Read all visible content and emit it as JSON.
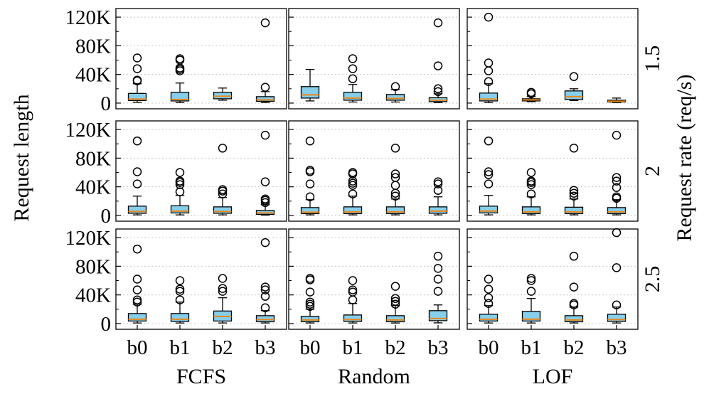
{
  "chart_data": {
    "type": "box",
    "ylabel": "Request length",
    "right_label": "Request rate (req/s)",
    "y_ticks": [
      0,
      40000,
      80000,
      120000
    ],
    "y_tick_labels": [
      "0",
      "40K",
      "80K",
      "120K"
    ],
    "ylim": [
      -8000,
      132000
    ],
    "grid": "horizontal dotted",
    "categories": [
      "b0",
      "b1",
      "b2",
      "b3"
    ],
    "columns": [
      "FCFS",
      "Random",
      "LOF"
    ],
    "rows": [
      "1.5",
      "2",
      "2.5"
    ],
    "colors": {
      "box_fill": "#87CEEB",
      "median": "#E8891C",
      "grid": "#C8C8C8",
      "edge": "#000000"
    },
    "panels": [
      {
        "row": "1.5",
        "column": "FCFS",
        "boxes": [
          {
            "category": "b0",
            "whislo": 1000,
            "q1": 3500,
            "med": 5500,
            "q3": 13500,
            "whishi": 27000,
            "fliers": [
              31000,
              32000,
              48000,
              63000
            ]
          },
          {
            "category": "b1",
            "whislo": 800,
            "q1": 3000,
            "med": 5000,
            "q3": 15000,
            "whishi": 28000,
            "fliers": [
              45000,
              47000,
              49000,
              60000,
              62000
            ]
          },
          {
            "category": "b2",
            "whislo": 4000,
            "q1": 6000,
            "med": 9500,
            "q3": 15000,
            "whishi": 21000,
            "fliers": []
          },
          {
            "category": "b3",
            "whislo": 800,
            "q1": 2500,
            "med": 4500,
            "q3": 9000,
            "whishi": 16000,
            "fliers": [
              22000,
              112000
            ]
          }
        ]
      },
      {
        "row": "1.5",
        "column": "Random",
        "boxes": [
          {
            "category": "b0",
            "whislo": 3000,
            "q1": 7000,
            "med": 11500,
            "q3": 23000,
            "whishi": 47000,
            "fliers": []
          },
          {
            "category": "b1",
            "whislo": 1500,
            "q1": 4000,
            "med": 7000,
            "q3": 15000,
            "whishi": 26000,
            "fliers": [
              34000,
              48000,
              62000
            ]
          },
          {
            "category": "b2",
            "whislo": 1500,
            "q1": 4000,
            "med": 6500,
            "q3": 12000,
            "whishi": 19000,
            "fliers": [
              23000
            ]
          },
          {
            "category": "b3",
            "whislo": 800,
            "q1": 2000,
            "med": 4000,
            "q3": 7500,
            "whishi": 13000,
            "fliers": [
              16000,
              20000,
              52000,
              112000
            ]
          }
        ]
      },
      {
        "row": "1.5",
        "column": "LOF",
        "boxes": [
          {
            "category": "b0",
            "whislo": 800,
            "q1": 3000,
            "med": 5500,
            "q3": 14000,
            "whishi": 27000,
            "fliers": [
              30000,
              45000,
              56000,
              120000
            ]
          },
          {
            "category": "b1",
            "whislo": 2000,
            "q1": 3000,
            "med": 4500,
            "q3": 6000,
            "whishi": 9000,
            "fliers": [
              13000,
              15000
            ]
          },
          {
            "category": "b2",
            "whislo": 3500,
            "q1": 5000,
            "med": 9000,
            "q3": 17000,
            "whishi": 20000,
            "fliers": [
              37000
            ]
          },
          {
            "category": "b3",
            "whislo": 800,
            "q1": 1500,
            "med": 2500,
            "q3": 4000,
            "whishi": 7000,
            "fliers": []
          }
        ]
      },
      {
        "row": "2",
        "column": "FCFS",
        "boxes": [
          {
            "category": "b0",
            "whislo": 800,
            "q1": 3000,
            "med": 5500,
            "q3": 13000,
            "whishi": 27000,
            "fliers": [
              44000,
              61000,
              104000
            ]
          },
          {
            "category": "b1",
            "whislo": 800,
            "q1": 3500,
            "med": 6000,
            "q3": 13500,
            "whishi": 28000,
            "fliers": [
              33000,
              43000,
              46000,
              48000,
              60000
            ]
          },
          {
            "category": "b2",
            "whislo": 800,
            "q1": 3000,
            "med": 5500,
            "q3": 12000,
            "whishi": 25000,
            "fliers": [
              30000,
              34000,
              36000,
              94000
            ]
          },
          {
            "category": "b3",
            "whislo": 500,
            "q1": 1500,
            "med": 3500,
            "q3": 7000,
            "whishi": 15000,
            "fliers": [
              18000,
              21000,
              23000,
              47000,
              112000
            ]
          }
        ]
      },
      {
        "row": "2",
        "column": "Random",
        "boxes": [
          {
            "category": "b0",
            "whislo": 800,
            "q1": 2500,
            "med": 4500,
            "q3": 11000,
            "whishi": 22000,
            "fliers": [
              26000,
              44000,
              61000,
              63000,
              104000
            ]
          },
          {
            "category": "b1",
            "whislo": 800,
            "q1": 2500,
            "med": 5000,
            "q3": 12000,
            "whishi": 27000,
            "fliers": [
              30000,
              42000,
              45000,
              48000,
              58000,
              60000
            ]
          },
          {
            "category": "b2",
            "whislo": 800,
            "q1": 2500,
            "med": 5000,
            "q3": 12000,
            "whishi": 23000,
            "fliers": [
              27000,
              31000,
              42000,
              53000,
              58000,
              94000
            ]
          },
          {
            "category": "b3",
            "whislo": 800,
            "q1": 3000,
            "med": 6000,
            "q3": 12000,
            "whishi": 26000,
            "fliers": [
              35000,
              44000,
              47000
            ]
          }
        ]
      },
      {
        "row": "2",
        "column": "LOF",
        "boxes": [
          {
            "category": "b0",
            "whislo": 800,
            "q1": 3500,
            "med": 6000,
            "q3": 13000,
            "whishi": 28000,
            "fliers": [
              44000,
              57000,
              61000,
              104000
            ]
          },
          {
            "category": "b1",
            "whislo": 800,
            "q1": 2500,
            "med": 5000,
            "q3": 12000,
            "whishi": 26000,
            "fliers": [
              30000,
              43000,
              46000,
              48000,
              60000
            ]
          },
          {
            "category": "b2",
            "whislo": 800,
            "q1": 2500,
            "med": 5000,
            "q3": 11500,
            "whishi": 23000,
            "fliers": [
              27000,
              31000,
              35000,
              94000
            ]
          },
          {
            "category": "b3",
            "whislo": 800,
            "q1": 2500,
            "med": 5000,
            "q3": 11000,
            "whishi": 22000,
            "fliers": [
              24000,
              26000,
              39000,
              48000,
              53000,
              112000
            ]
          }
        ]
      },
      {
        "row": "2.5",
        "column": "FCFS",
        "boxes": [
          {
            "category": "b0",
            "whislo": 800,
            "q1": 3500,
            "med": 6000,
            "q3": 14000,
            "whishi": 27000,
            "fliers": [
              30000,
              33000,
              47000,
              62000,
              104000
            ]
          },
          {
            "category": "b1",
            "whislo": 800,
            "q1": 3000,
            "med": 6000,
            "q3": 14000,
            "whishi": 30000,
            "fliers": [
              33000,
              45000,
              48000,
              60000
            ]
          },
          {
            "category": "b2",
            "whislo": 800,
            "q1": 3500,
            "med": 10000,
            "q3": 17500,
            "whishi": 36000,
            "fliers": [
              45000,
              49000,
              63000
            ]
          },
          {
            "category": "b3",
            "whislo": 800,
            "q1": 2500,
            "med": 5500,
            "q3": 11000,
            "whishi": 18000,
            "fliers": [
              22000,
              38000,
              47000,
              51000,
              113000
            ]
          }
        ]
      },
      {
        "row": "2.5",
        "column": "Random",
        "boxes": [
          {
            "category": "b0",
            "whislo": 800,
            "q1": 2500,
            "med": 5000,
            "q3": 10000,
            "whishi": 20000,
            "fliers": [
              24000,
              27000,
              30000,
              44000,
              61000,
              63000
            ]
          },
          {
            "category": "b1",
            "whislo": 800,
            "q1": 3000,
            "med": 5500,
            "q3": 12000,
            "whishi": 28000,
            "fliers": [
              33000,
              44000,
              47000,
              60000
            ]
          },
          {
            "category": "b2",
            "whislo": 800,
            "q1": 2500,
            "med": 5000,
            "q3": 11000,
            "whishi": 25000,
            "fliers": [
              27000,
              31000,
              35000,
              52000
            ]
          },
          {
            "category": "b3",
            "whislo": 1000,
            "q1": 4000,
            "med": 7000,
            "q3": 18000,
            "whishi": 26000,
            "fliers": [
              45000,
              62000,
              77000,
              94000
            ]
          }
        ]
      },
      {
        "row": "2.5",
        "column": "LOF",
        "boxes": [
          {
            "category": "b0",
            "whislo": 800,
            "q1": 3500,
            "med": 6000,
            "q3": 13000,
            "whishi": 25000,
            "fliers": [
              28000,
              36000,
              48000,
              62000
            ]
          },
          {
            "category": "b1",
            "whislo": 800,
            "q1": 3500,
            "med": 6000,
            "q3": 17000,
            "whishi": 35000,
            "fliers": [
              45000,
              60000,
              63000
            ]
          },
          {
            "category": "b2",
            "whislo": 800,
            "q1": 2500,
            "med": 5000,
            "q3": 11000,
            "whishi": 23000,
            "fliers": [
              26000,
              28000,
              51000,
              94000
            ]
          },
          {
            "category": "b3",
            "whislo": 800,
            "q1": 3000,
            "med": 5500,
            "q3": 13000,
            "whishi": 23000,
            "fliers": [
              26000,
              78000,
              127000
            ]
          }
        ]
      }
    ]
  }
}
